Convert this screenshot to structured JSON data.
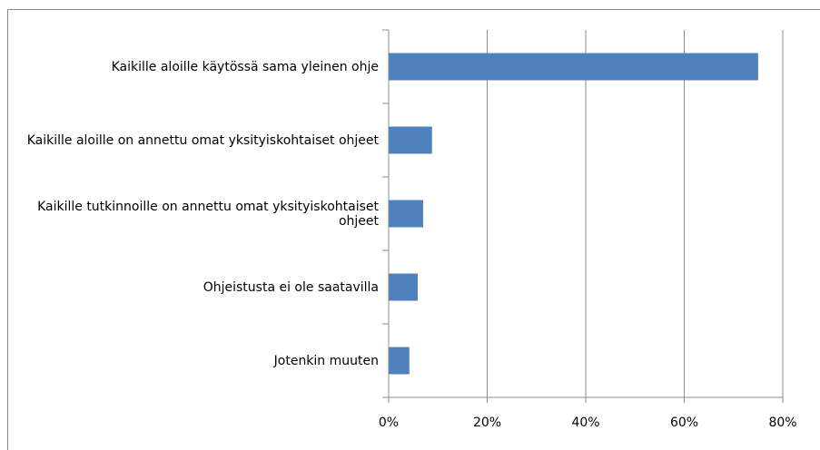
{
  "chart_data": {
    "type": "bar",
    "orientation": "horizontal",
    "categories": [
      "Kaikille aloille käytössä sama yleinen ohje",
      "Kaikille aloille on annettu omat yksityiskohtaiset ohjeet",
      "Kaikille tutkinnoille on annettu omat yksityiskohtaiset ohjeet",
      "Ohjeistusta ei ole saatavilla",
      "Jotenkin muuten"
    ],
    "values": [
      75,
      8.8,
      7,
      5.9,
      4.2
    ],
    "color": "#4f81bd",
    "xlim": [
      0,
      80
    ],
    "xticks": [
      {
        "value": 0,
        "label": "0%"
      },
      {
        "value": 20,
        "label": "20%"
      },
      {
        "value": 40,
        "label": "40%"
      },
      {
        "value": 60,
        "label": "60%"
      },
      {
        "value": 80,
        "label": "80%"
      }
    ],
    "grid": true
  }
}
